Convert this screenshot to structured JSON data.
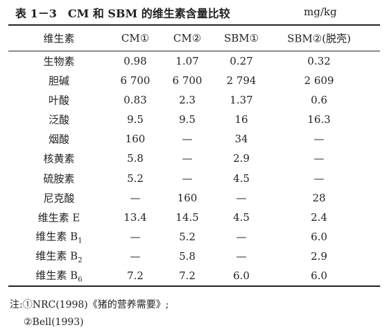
{
  "header": {
    "title": "表 1－3　CM 和 SBM 的维生素含量比较",
    "unit": "mg/kg"
  },
  "table": {
    "columns": [
      "维生素",
      "CM①",
      "CM②",
      "SBM①",
      "SBM②(脱壳)"
    ],
    "rows": [
      [
        "生物素",
        "0.98",
        "1.07",
        "0.27",
        "0.32"
      ],
      [
        "胆碱",
        "6 700",
        "6 700",
        "2 794",
        "2 609"
      ],
      [
        "叶酸",
        "0.83",
        "2.3",
        "1.37",
        "0.6"
      ],
      [
        "泛酸",
        "9.5",
        "9.5",
        "16",
        "16.3"
      ],
      [
        "烟酸",
        "160",
        "—",
        "34",
        "—"
      ],
      [
        "核黄素",
        "5.8",
        "—",
        "2.9",
        "—"
      ],
      [
        "硫胺素",
        "5.2",
        "—",
        "4.5",
        "—"
      ],
      [
        "尼克酸",
        "—",
        "160",
        "—",
        "28"
      ],
      [
        "维生素 E",
        "13.4",
        "14.5",
        "4.5",
        "2.4"
      ],
      [
        {
          "text": "维生素 B",
          "sub": "1"
        },
        "—",
        "5.2",
        "—",
        "6.0"
      ],
      [
        {
          "text": "维生素 B",
          "sub": "2"
        },
        "—",
        "5.8",
        "—",
        "2.9"
      ],
      [
        {
          "text": "维生素 B",
          "sub": "6"
        },
        "7.2",
        "7.2",
        "6.0",
        "6.0"
      ]
    ]
  },
  "notes": [
    "注:①NRC(1998)《猪的营养需要》;",
    "②Bell(1993)"
  ]
}
